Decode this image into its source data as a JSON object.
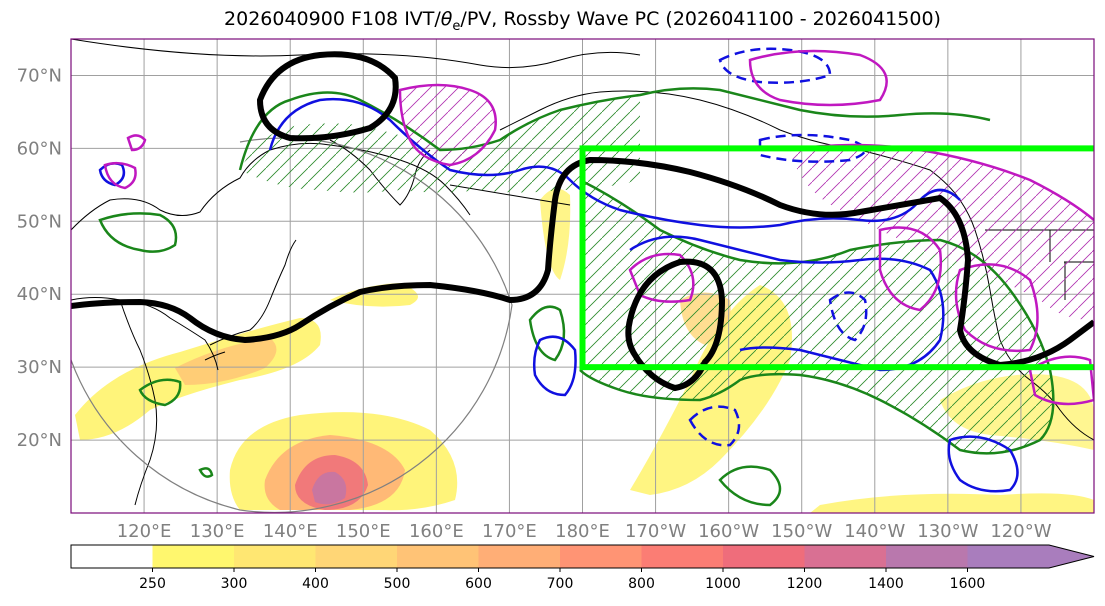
{
  "title": {
    "prefix": "2026040900 F108 IVT/",
    "theta": "θ",
    "sub": "e",
    "suffix": "/PV, Rossby Wave PC (2026041100 - 2026041500)"
  },
  "map": {
    "lat_labels": [
      "70°N",
      "60°N",
      "50°N",
      "40°N",
      "30°N",
      "20°N"
    ],
    "lat_values": [
      70,
      60,
      50,
      40,
      30,
      20
    ],
    "lat_range": [
      10,
      75
    ],
    "lon_labels": [
      "120°E",
      "130°E",
      "140°E",
      "150°E",
      "160°E",
      "170°E",
      "180°E",
      "170°W",
      "160°W",
      "150°W",
      "140°W",
      "130°W",
      "120°W"
    ],
    "lon_values": [
      120,
      130,
      140,
      150,
      160,
      170,
      180,
      190,
      200,
      210,
      220,
      230,
      240
    ],
    "lon_range": [
      110,
      250
    ],
    "highlight_box": {
      "lon": [
        180,
        250
      ],
      "lat": [
        30,
        60
      ],
      "color": "#00ff00"
    }
  },
  "colorbar": {
    "levels": [
      "250",
      "300",
      "400",
      "500",
      "600",
      "700",
      "800",
      "1000",
      "1200",
      "1400",
      "1600"
    ],
    "colors": [
      "#ffffff",
      "#fff76e",
      "#ffe772",
      "#ffd676",
      "#ffc376",
      "#ffae76",
      "#ff9474",
      "#fb7d74",
      "#ef6d7b",
      "#d97093",
      "#b978ad",
      "#a97dbd"
    ]
  }
}
